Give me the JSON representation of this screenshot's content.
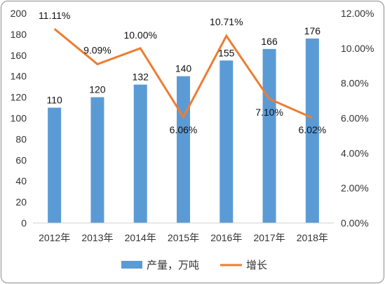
{
  "chart_data": {
    "type": "bar",
    "categories": [
      "2012年",
      "2013年",
      "2014年",
      "2015年",
      "2016年",
      "2017年",
      "2018年"
    ],
    "series": [
      {
        "name": "产量，万吨",
        "type": "bar",
        "axis": "left",
        "values": [
          110,
          120,
          132,
          140,
          155,
          166,
          176
        ],
        "labels": [
          "110",
          "120",
          "132",
          "140",
          "155",
          "166",
          "176"
        ],
        "color": "#5b9bd5"
      },
      {
        "name": "增长",
        "type": "line",
        "axis": "right",
        "values": [
          11.11,
          9.09,
          10.0,
          6.06,
          10.71,
          7.1,
          6.02
        ],
        "labels": [
          "11.11%",
          "9.09%",
          "10.00%",
          "6.06%",
          "10.71%",
          "7.10%",
          "6.02%"
        ],
        "color": "#ed7d31"
      }
    ],
    "y_left": {
      "range": [
        0,
        200
      ],
      "ticks": [
        "0",
        "20",
        "40",
        "60",
        "80",
        "100",
        "120",
        "140",
        "160",
        "180",
        "200"
      ]
    },
    "y_right": {
      "range": [
        0,
        12
      ],
      "ticks": [
        "0.00%",
        "2.00%",
        "4.00%",
        "6.00%",
        "8.00%",
        "10.00%",
        "12.00%"
      ]
    },
    "grid": false,
    "legend": "bottom",
    "title": "",
    "xlabel": "",
    "ylabel": ""
  }
}
